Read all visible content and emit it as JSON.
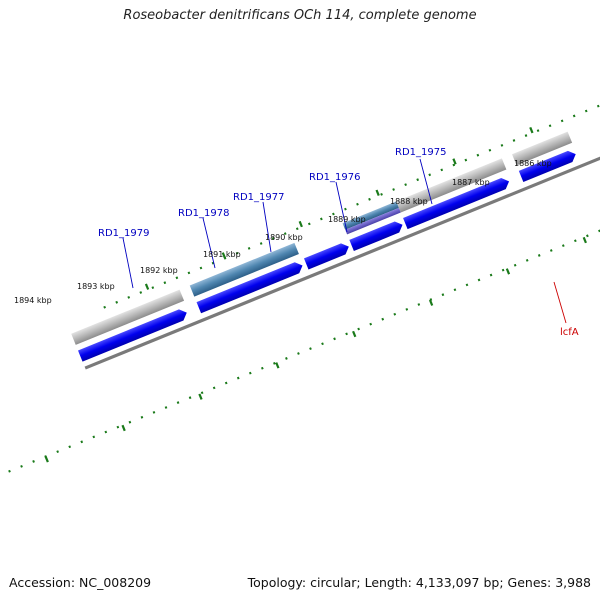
{
  "title": "Roseobacter denitrificans OCh 114, complete genome",
  "footer": {
    "accession": "Accession: NC_008209",
    "summary": "Topology: circular; Length: 4,133,097 bp; Genes: 3,988"
  },
  "scale_labels": [
    "1886 kbp",
    "1887 kbp",
    "1888 kbp",
    "1889 kbp",
    "1890 kbp",
    "1891 kbp",
    "1892 kbp",
    "1893 kbp",
    "1894 kbp"
  ],
  "gene_labels": [
    "RD1_1975",
    "RD1_1976",
    "RD1_1977",
    "RD1_1978",
    "RD1_1979",
    "lcfA"
  ],
  "colors": {
    "cds_blue": "#0000ee",
    "gene_grey": "#b0b0b0",
    "gene_steelblue": "#4f86b0",
    "highlight_red": "#ee0000",
    "backbone": "#808080",
    "ticks": "#1a7a1a",
    "label_blue": "#0000c0",
    "label_red": "#cc0000"
  }
}
